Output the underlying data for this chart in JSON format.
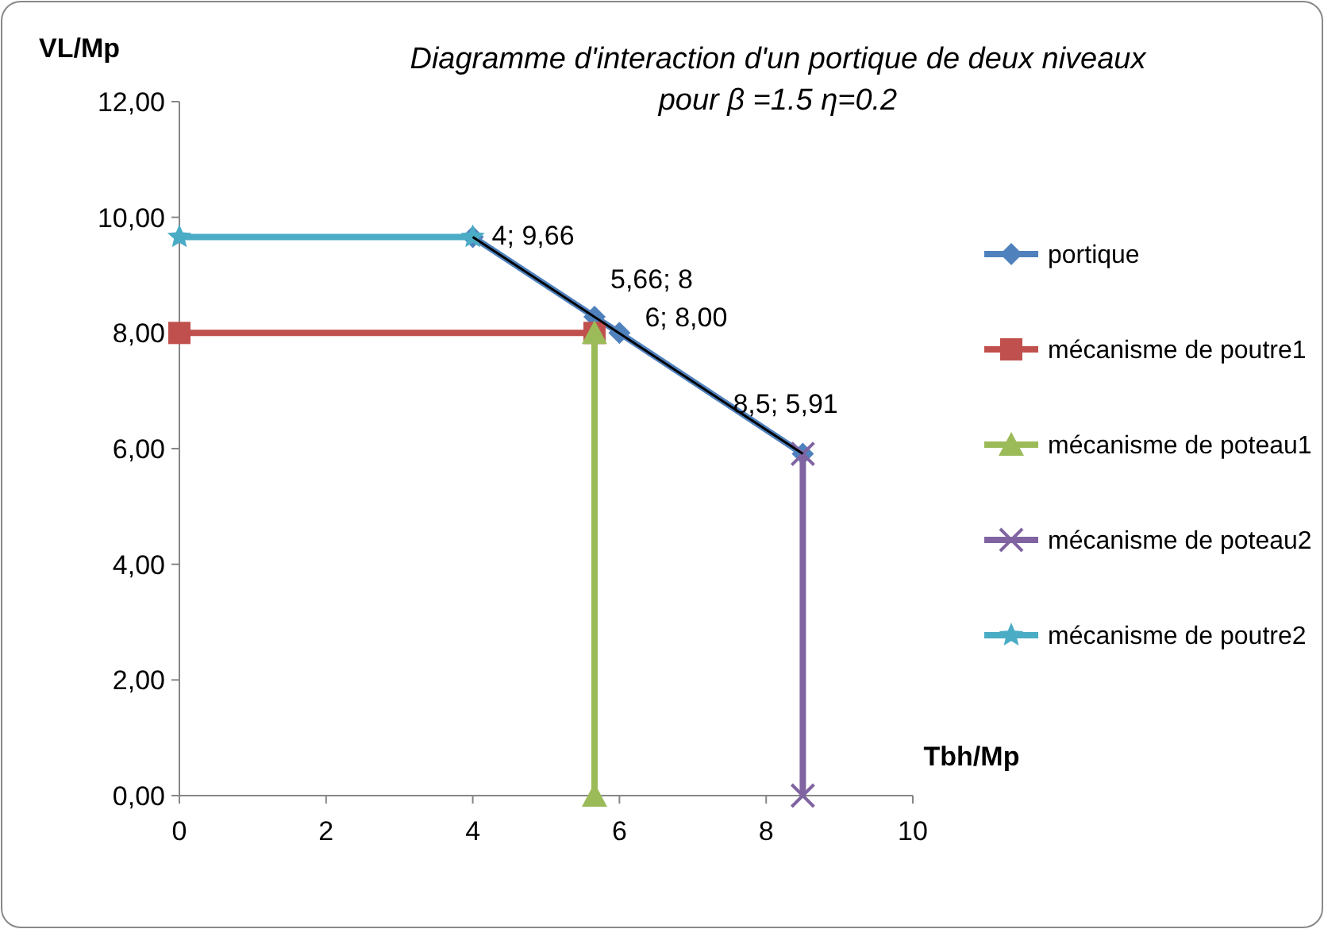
{
  "chart_data": {
    "type": "line",
    "title": "Diagramme d'interaction d'un portique  de deux niveaux  pour  β =1.5  η=0.2",
    "xlabel": "Tbh/Mp",
    "ylabel": "VL/Mp",
    "xlim": [
      0,
      10
    ],
    "xticks": [
      0,
      2,
      4,
      6,
      8,
      10
    ],
    "ylim": [
      0,
      12
    ],
    "yticks": [
      {
        "value": 0,
        "label": "0,00"
      },
      {
        "value": 2,
        "label": "2,00"
      },
      {
        "value": 4,
        "label": "4,00"
      },
      {
        "value": 6,
        "label": "6,00"
      },
      {
        "value": 8,
        "label": "8,00"
      },
      {
        "value": 10,
        "label": "10,00"
      },
      {
        "value": 12,
        "label": "12,00"
      }
    ],
    "grid": false,
    "legend": "right",
    "line_style": "solid",
    "series": [
      {
        "name": "portique",
        "color": "#4f81bd",
        "marker": "diamond",
        "x": [
          4,
          5.66,
          6,
          8.5
        ],
        "values": [
          9.66,
          8.28,
          8,
          5.91
        ]
      },
      {
        "name": "mécanisme de poutre1",
        "color": "#c0504d",
        "marker": "square",
        "x": [
          0,
          5.66
        ],
        "values": [
          8,
          8
        ]
      },
      {
        "name": "mécanisme de poteau1",
        "color": "#9bbb59",
        "marker": "triangle",
        "x": [
          5.66,
          5.66
        ],
        "values": [
          0,
          8
        ]
      },
      {
        "name": "mécanisme de poteau2",
        "color": "#8064a2",
        "marker": "cross",
        "x": [
          8.5,
          8.5
        ],
        "values": [
          0,
          5.91
        ]
      },
      {
        "name": "mécanisme de poutre2",
        "color": "#4bacc6",
        "marker": "star",
        "x": [
          0,
          4
        ],
        "values": [
          9.66,
          9.66
        ]
      },
      {
        "color": "#000000",
        "marker": "none",
        "x": [
          4,
          8.5
        ],
        "values": [
          9.66,
          5.91
        ]
      }
    ],
    "annotations": [
      {
        "text": "4; 9,66",
        "x": 4,
        "y": 9.66
      },
      {
        "text": "5,66; 8",
        "x": 5.66,
        "y": 8
      },
      {
        "text": "6; 8,00",
        "x": 6,
        "y": 8
      },
      {
        "text": "8,5; 5,91",
        "x": 8.5,
        "y": 5.91
      }
    ]
  }
}
